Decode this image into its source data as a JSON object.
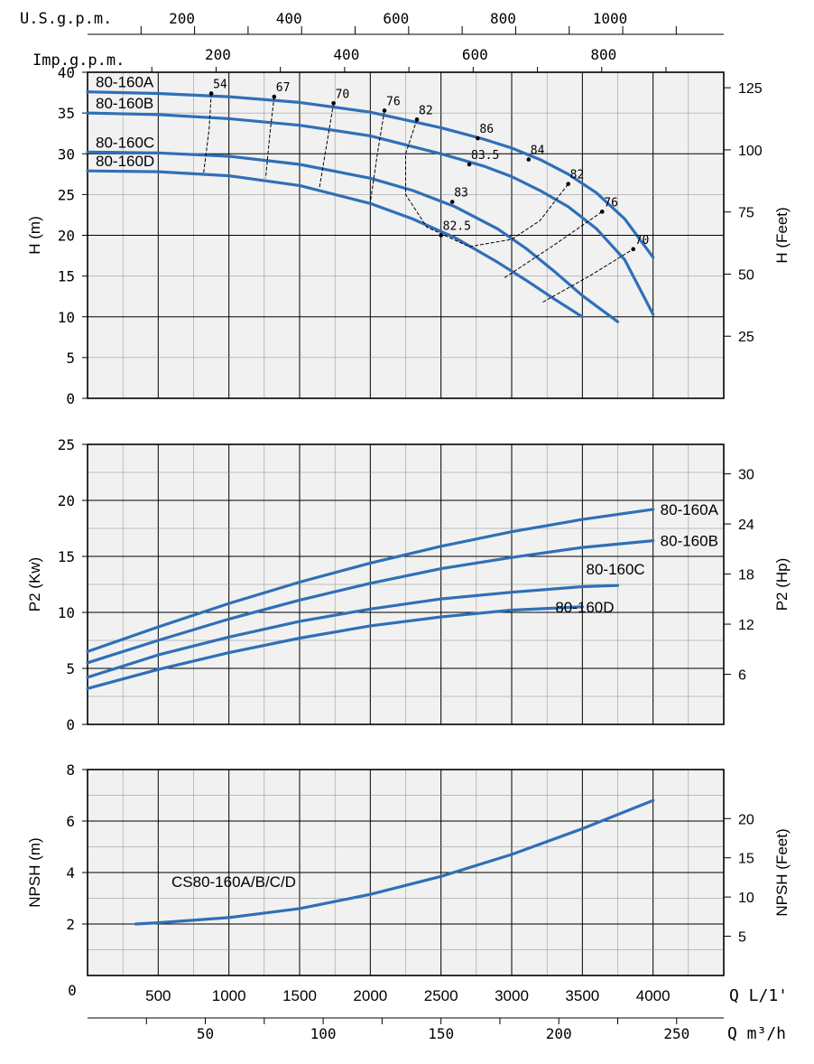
{
  "top_axes": {
    "us_label": "U.S.g.p.m.",
    "us_ticks": [
      "200",
      "400",
      "600",
      "800",
      "1000"
    ],
    "us_values": [
      200,
      400,
      600,
      800,
      1000
    ],
    "imp_label": "Imp.g.p.m.",
    "imp_ticks": [
      "200",
      "400",
      "600",
      "800"
    ],
    "imp_values": [
      200,
      400,
      600,
      800
    ]
  },
  "bottom_axes": {
    "q_label": "Q L/1'",
    "q_ticks": [
      "500",
      "1000",
      "1500",
      "2000",
      "2500",
      "3000",
      "3500",
      "4000"
    ],
    "q_values": [
      500,
      1000,
      1500,
      2000,
      2500,
      3000,
      3500,
      4000
    ],
    "m3h_label": "Q m³/h",
    "m3h_ticks": [
      "50",
      "100",
      "150",
      "200",
      "250"
    ],
    "m3h_values": [
      50,
      100,
      150,
      200,
      250
    ],
    "origin": "0"
  },
  "chart_data": [
    {
      "type": "line",
      "id": "head",
      "ylabel": "H (m)",
      "y2label": "H (Feet)",
      "xlim": [
        0,
        4500
      ],
      "ylim": [
        0,
        40
      ],
      "y_ticks": [
        "0",
        "5",
        "10",
        "15",
        "20",
        "25",
        "30",
        "35",
        "40"
      ],
      "y_tick_values": [
        0,
        5,
        10,
        15,
        20,
        25,
        30,
        35,
        40
      ],
      "y2_ticks": [
        "25",
        "50",
        "75",
        "100",
        "125"
      ],
      "y2_tick_values": [
        25,
        50,
        75,
        100,
        125
      ],
      "grid": true,
      "series": [
        {
          "name": "80-160A",
          "x": [
            0,
            500,
            1000,
            1500,
            2000,
            2500,
            2800,
            3000,
            3200,
            3400,
            3600,
            3800,
            4000
          ],
          "y": [
            37.6,
            37.4,
            37.0,
            36.3,
            35.1,
            33.2,
            31.8,
            30.7,
            29.3,
            27.5,
            25.2,
            22.0,
            17.3
          ]
        },
        {
          "name": "80-160B",
          "x": [
            0,
            500,
            1000,
            1500,
            2000,
            2500,
            2800,
            3000,
            3200,
            3400,
            3600,
            3800,
            4000
          ],
          "y": [
            35.0,
            34.8,
            34.3,
            33.5,
            32.2,
            30.0,
            28.5,
            27.2,
            25.5,
            23.5,
            20.8,
            17.0,
            10.3
          ]
        },
        {
          "name": "80-160C",
          "x": [
            0,
            500,
            1000,
            1500,
            2000,
            2300,
            2600,
            2900,
            3100,
            3300,
            3500,
            3750
          ],
          "y": [
            30.2,
            30.1,
            29.7,
            28.7,
            27.0,
            25.5,
            23.5,
            20.8,
            18.4,
            15.6,
            12.6,
            9.4
          ]
        },
        {
          "name": "80-160D",
          "x": [
            0,
            500,
            1000,
            1500,
            2000,
            2300,
            2600,
            2900,
            3100,
            3300,
            3500
          ],
          "y": [
            27.9,
            27.8,
            27.3,
            26.1,
            23.9,
            22.0,
            19.7,
            16.7,
            14.5,
            12.2,
            10.0
          ]
        }
      ],
      "efficiency_labels": [
        "54",
        "67",
        "70",
        "76",
        "82",
        "86",
        "84",
        "83.5",
        "83",
        "82.5",
        "82",
        "76",
        "70"
      ],
      "efficiency_points": [
        {
          "x": 875,
          "y": 37.4,
          "label": "54"
        },
        {
          "x": 1320,
          "y": 37.0,
          "label": "67"
        },
        {
          "x": 1740,
          "y": 36.2,
          "label": "70"
        },
        {
          "x": 2100,
          "y": 35.3,
          "label": "76"
        },
        {
          "x": 2330,
          "y": 34.2,
          "label": "82"
        },
        {
          "x": 2760,
          "y": 31.9,
          "label": "86"
        },
        {
          "x": 3120,
          "y": 29.3,
          "label": "84"
        },
        {
          "x": 2700,
          "y": 28.7,
          "label": "83.5"
        },
        {
          "x": 2580,
          "y": 24.1,
          "label": "83"
        },
        {
          "x": 2500,
          "y": 20.0,
          "label": "82.5"
        },
        {
          "x": 3400,
          "y": 26.3,
          "label": "82"
        },
        {
          "x": 3640,
          "y": 22.9,
          "label": "76"
        },
        {
          "x": 3860,
          "y": 18.3,
          "label": "70"
        }
      ],
      "iso_efficiency_lines": [
        [
          [
            875,
            37.4
          ],
          [
            860,
            33.0
          ],
          [
            820,
            27.5
          ]
        ],
        [
          [
            1320,
            37.0
          ],
          [
            1290,
            32.5
          ],
          [
            1260,
            27.0
          ]
        ],
        [
          [
            1740,
            36.2
          ],
          [
            1690,
            31.0
          ],
          [
            1640,
            25.8
          ]
        ],
        [
          [
            2100,
            35.3
          ],
          [
            2050,
            30.0
          ],
          [
            2000,
            24.0
          ]
        ],
        [
          [
            2330,
            34.2
          ],
          [
            2250,
            30.0
          ],
          [
            2250,
            25.0
          ],
          [
            2400,
            21.0
          ],
          [
            2700,
            18.6
          ],
          [
            3000,
            19.5
          ],
          [
            3200,
            21.8
          ],
          [
            3400,
            26.3
          ]
        ],
        [
          [
            2950,
            14.8
          ],
          [
            3300,
            18.8
          ],
          [
            3640,
            22.9
          ]
        ],
        [
          [
            3220,
            11.8
          ],
          [
            3550,
            15.0
          ],
          [
            3860,
            18.3
          ]
        ]
      ]
    },
    {
      "type": "line",
      "id": "power",
      "ylabel": "P2 (Kw)",
      "y2label": "P2 (Hp)",
      "xlim": [
        0,
        4500
      ],
      "ylim": [
        0,
        25
      ],
      "y_ticks": [
        "0",
        "5",
        "10",
        "15",
        "20",
        "25"
      ],
      "y_tick_values": [
        0,
        5,
        10,
        15,
        20,
        25
      ],
      "y2_ticks": [
        "6",
        "12",
        "18",
        "24",
        "30"
      ],
      "y2_tick_values": [
        6,
        12,
        18,
        24,
        30
      ],
      "grid": true,
      "series": [
        {
          "name": "80-160A",
          "x": [
            0,
            500,
            1000,
            1500,
            2000,
            2500,
            3000,
            3500,
            4000
          ],
          "y": [
            6.5,
            8.7,
            10.8,
            12.7,
            14.4,
            15.9,
            17.2,
            18.3,
            19.2
          ]
        },
        {
          "name": "80-160B",
          "x": [
            0,
            500,
            1000,
            1500,
            2000,
            2500,
            3000,
            3500,
            4000
          ],
          "y": [
            5.5,
            7.5,
            9.4,
            11.1,
            12.6,
            13.9,
            14.9,
            15.8,
            16.4
          ]
        },
        {
          "name": "80-160C",
          "x": [
            0,
            500,
            1000,
            1500,
            2000,
            2500,
            3000,
            3500,
            3750
          ],
          "y": [
            4.2,
            6.2,
            7.8,
            9.2,
            10.3,
            11.2,
            11.8,
            12.3,
            12.4
          ]
        },
        {
          "name": "80-160D",
          "x": [
            0,
            500,
            1000,
            1500,
            2000,
            2500,
            3000,
            3500
          ],
          "y": [
            3.2,
            4.9,
            6.4,
            7.7,
            8.8,
            9.6,
            10.2,
            10.5
          ]
        }
      ]
    },
    {
      "type": "line",
      "id": "npsh",
      "ylabel": "NPSH (m)",
      "y2label": "NPSH (Feet)",
      "xlim": [
        0,
        4500
      ],
      "ylim": [
        0,
        8
      ],
      "y_ticks": [
        "2",
        "4",
        "6",
        "8"
      ],
      "y_tick_values": [
        2,
        4,
        6,
        8
      ],
      "y2_ticks": [
        "5",
        "10",
        "15",
        "20"
      ],
      "y2_tick_values": [
        5,
        10,
        15,
        20
      ],
      "grid": true,
      "series": [
        {
          "name": "CS80-160A/B/C/D",
          "x": [
            340,
            500,
            1000,
            1500,
            2000,
            2500,
            3000,
            3500,
            4000
          ],
          "y": [
            2.0,
            2.05,
            2.25,
            2.6,
            3.15,
            3.85,
            4.7,
            5.7,
            6.8
          ]
        }
      ]
    }
  ]
}
